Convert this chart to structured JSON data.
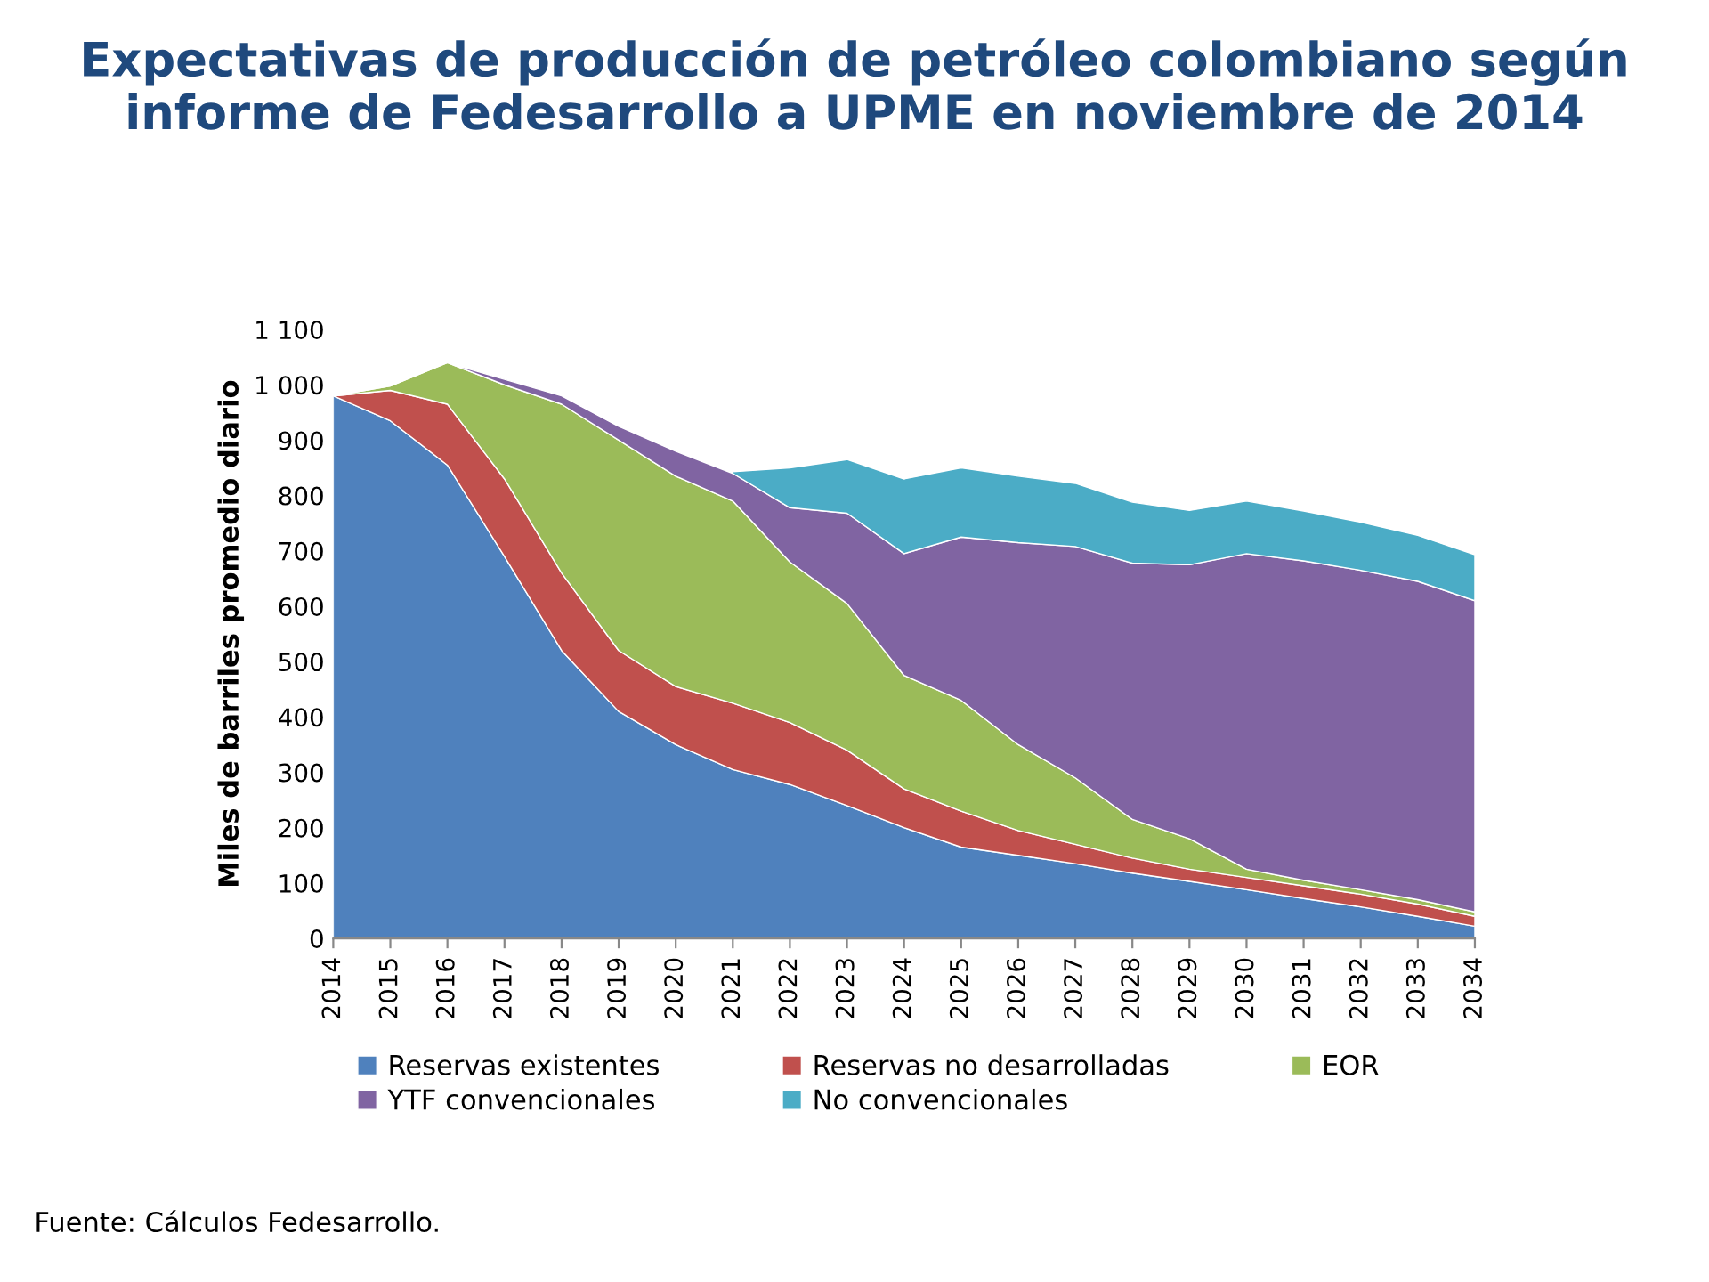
{
  "chart_data": {
    "type": "area",
    "stacked": true,
    "title": "Expectativas de producción de petróleo colombiano según informe de Fedesarrollo a UPME en noviembre de 2014",
    "ylabel": "Miles de barriles promedio diario",
    "categories": [
      "2014",
      "2015",
      "2016",
      "2017",
      "2018",
      "2019",
      "2020",
      "2021",
      "2022",
      "2023",
      "2024",
      "2025",
      "2026",
      "2027",
      "2028",
      "2029",
      "2030",
      "2031",
      "2032",
      "2033",
      "2034"
    ],
    "series": [
      {
        "name": "Reservas existentes",
        "color": "#4f81bd",
        "values": [
          980,
          935,
          855,
          690,
          520,
          410,
          350,
          305,
          278,
          240,
          200,
          165,
          150,
          135,
          118,
          103,
          88,
          72,
          57,
          40,
          22
        ]
      },
      {
        "name": "Reservas no desarrolladas",
        "color": "#c0504d",
        "values": [
          0,
          55,
          110,
          140,
          140,
          110,
          105,
          120,
          112,
          100,
          70,
          65,
          45,
          35,
          27,
          22,
          22,
          23,
          23,
          22,
          18
        ]
      },
      {
        "name": "EOR",
        "color": "#9bbb59",
        "values": [
          0,
          8,
          75,
          170,
          305,
          380,
          380,
          365,
          290,
          265,
          205,
          200,
          155,
          120,
          70,
          55,
          15,
          10,
          8,
          8,
          8
        ]
      },
      {
        "name": "YTF convencionales",
        "color": "#8064a2",
        "values": [
          0,
          0,
          0,
          10,
          15,
          25,
          45,
          50,
          98,
          163,
          220,
          295,
          365,
          418,
          463,
          495,
          570,
          577,
          577,
          575,
          562
        ]
      },
      {
        "name": "No convencionales",
        "color": "#4bacc6",
        "values": [
          null,
          null,
          null,
          null,
          null,
          null,
          null,
          3,
          72,
          97,
          135,
          125,
          120,
          114,
          110,
          98,
          95,
          90,
          87,
          83,
          83
        ]
      }
    ],
    "ylim": [
      0,
      1100
    ],
    "yticks": [
      0,
      100,
      200,
      300,
      400,
      500,
      600,
      700,
      800,
      900,
      {
        "value": 1000,
        "label": "1 000"
      },
      {
        "value": 1100,
        "label": "1 100"
      }
    ],
    "grid": false,
    "legend": "bottom",
    "annotations": [
      "Fuente: Cálculos Fedesarrollo."
    ]
  }
}
